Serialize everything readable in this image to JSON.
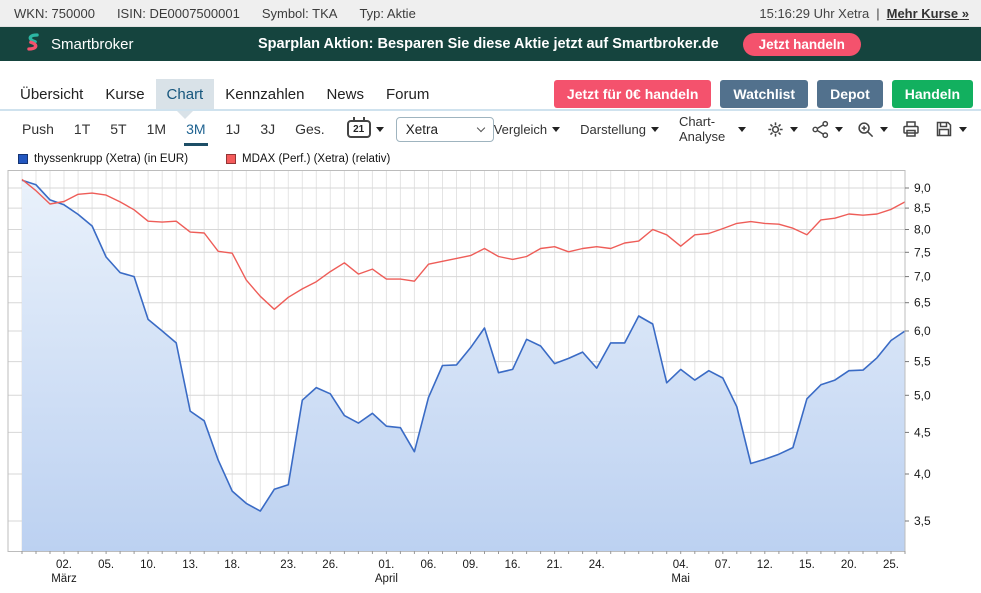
{
  "palette": {
    "banner_bg": "#15443e",
    "brand_teal": "#2cb6a3",
    "accent_red": "#f4526d",
    "slate": "#52718d",
    "green": "#12b05f",
    "active_blue": "#16567d",
    "chart_blue": "#3a6bc5",
    "chart_red": "#ee5d58"
  },
  "top_bar": {
    "items": [
      "WKN: 750000",
      "ISIN: DE0007500001",
      "Symbol: TKA",
      "Typ: Aktie"
    ],
    "time": "15:16:29 Uhr Xetra",
    "separator": "|",
    "more_link": "Mehr Kurse »"
  },
  "banner": {
    "brand": "Smartbroker",
    "message": "Sparplan Aktion: Besparen Sie diese Aktie jetzt auf Smartbroker.de",
    "cta": "Jetzt handeln"
  },
  "nav": {
    "tabs": [
      "Übersicht",
      "Kurse",
      "Chart",
      "Kennzahlen",
      "News",
      "Forum"
    ],
    "active_tab": "Chart",
    "actions": [
      "Jetzt für 0€ handeln",
      "Watchlist",
      "Depot",
      "Handeln"
    ]
  },
  "toolbar": {
    "ranges": [
      "Push",
      "1T",
      "5T",
      "1M",
      "3M",
      "1J",
      "3J",
      "Ges."
    ],
    "active_range": "3M",
    "calendar_day": "21",
    "exchange": "Xetra",
    "menus": [
      "Vergleich",
      "Darstellung",
      "Chart-Analyse"
    ],
    "icons": [
      "gear-icon",
      "share-icon",
      "zoom-in-icon",
      "printer-icon",
      "save-icon"
    ]
  },
  "legend": [
    {
      "label": "thyssenkrupp (Xetra) (in EUR)",
      "color": "#2357c0"
    },
    {
      "label": "MDAX (Perf.) (Xetra) (relativ)",
      "color": "#f45b5b"
    }
  ],
  "chart_data": {
    "type": "area",
    "y_scale": "log",
    "ylim": [
      3.215,
      9.47
    ],
    "grid": true,
    "y_ticks": [
      {
        "label": "9,0",
        "value": 9.0
      },
      {
        "label": "8,5",
        "value": 8.5
      },
      {
        "label": "8,0",
        "value": 8.0
      },
      {
        "label": "7,5",
        "value": 7.5
      },
      {
        "label": "7,0",
        "value": 7.0
      },
      {
        "label": "6,5",
        "value": 6.5
      },
      {
        "label": "6,0",
        "value": 6.0
      },
      {
        "label": "5,5",
        "value": 5.5
      },
      {
        "label": "5,0",
        "value": 5.0
      },
      {
        "label": "4,5",
        "value": 4.5
      },
      {
        "label": "4,0",
        "value": 4.0
      },
      {
        "label": "3,5",
        "value": 3.5
      }
    ],
    "x_ticks": [
      {
        "label": "02.",
        "month": "März",
        "day_index": 3
      },
      {
        "label": "05.",
        "day_index": 6
      },
      {
        "label": "10.",
        "day_index": 9
      },
      {
        "label": "13.",
        "day_index": 12
      },
      {
        "label": "18.",
        "day_index": 15
      },
      {
        "label": "23.",
        "day_index": 19
      },
      {
        "label": "26.",
        "day_index": 22
      },
      {
        "label": "01.",
        "month": "April",
        "day_index": 26
      },
      {
        "label": "06.",
        "day_index": 29
      },
      {
        "label": "09.",
        "day_index": 32
      },
      {
        "label": "16.",
        "day_index": 35
      },
      {
        "label": "21.",
        "day_index": 38
      },
      {
        "label": "24.",
        "day_index": 41
      },
      {
        "label": "04.",
        "month": "Mai",
        "day_index": 47
      },
      {
        "label": "07.",
        "day_index": 50
      },
      {
        "label": "12.",
        "day_index": 53
      },
      {
        "label": "15.",
        "day_index": 56
      },
      {
        "label": "20.",
        "day_index": 59
      },
      {
        "label": "25.",
        "day_index": 62
      }
    ],
    "series": [
      {
        "name": "thyssenkrupp (Xetra) (in EUR)",
        "style": "area",
        "color": "#3a6bc5",
        "fill_top": "#e9f1fb",
        "fill_bottom": "#bcd1f1",
        "values": [
          9.2,
          9.08,
          8.7,
          8.58,
          8.35,
          8.08,
          7.4,
          7.08,
          7.0,
          6.2,
          6.0,
          5.8,
          4.78,
          4.65,
          4.16,
          3.81,
          3.68,
          3.6,
          3.83,
          3.88,
          4.93,
          5.11,
          5.02,
          4.72,
          4.62,
          4.75,
          4.58,
          4.56,
          4.26,
          4.97,
          5.44,
          5.45,
          5.72,
          6.05,
          5.33,
          5.38,
          5.86,
          5.75,
          5.47,
          5.55,
          5.65,
          5.4,
          5.8,
          5.8,
          6.26,
          6.12,
          5.18,
          5.38,
          5.22,
          5.36,
          5.25,
          4.84,
          4.12,
          4.17,
          4.23,
          4.31,
          4.95,
          5.15,
          5.22,
          5.36,
          5.37,
          5.56,
          5.84,
          6.0
        ]
      },
      {
        "name": "MDAX (Perf.) (Xetra) (relativ)",
        "style": "line",
        "color": "#ee5d58",
        "values": [
          9.22,
          8.93,
          8.6,
          8.66,
          8.84,
          8.87,
          8.82,
          8.65,
          8.46,
          8.19,
          8.17,
          8.19,
          7.94,
          7.92,
          7.52,
          7.48,
          6.93,
          6.62,
          6.38,
          6.6,
          6.76,
          6.9,
          7.1,
          7.28,
          7.05,
          7.15,
          6.95,
          6.95,
          6.91,
          7.25,
          7.31,
          7.37,
          7.43,
          7.58,
          7.41,
          7.35,
          7.41,
          7.58,
          7.62,
          7.51,
          7.58,
          7.62,
          7.58,
          7.7,
          7.74,
          8.0,
          7.88,
          7.63,
          7.88,
          7.91,
          8.02,
          8.14,
          8.18,
          8.14,
          8.12,
          8.03,
          7.88,
          8.22,
          8.26,
          8.36,
          8.33,
          8.36,
          8.47,
          8.65
        ]
      }
    ]
  }
}
